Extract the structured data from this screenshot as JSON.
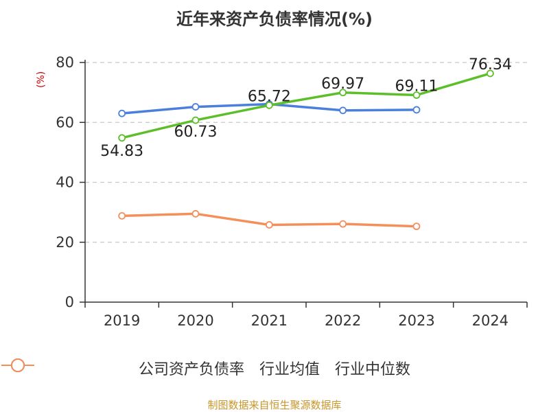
{
  "chart_data": {
    "type": "line",
    "title": "近年来资产负债率情况(%)",
    "ylabel": "(%)",
    "ylim": [
      0,
      80
    ],
    "yticks": [
      0,
      20,
      40,
      60,
      80
    ],
    "categories": [
      "2019",
      "2020",
      "2021",
      "2022",
      "2023",
      "2024"
    ],
    "grid": true,
    "legend_position": "bottom",
    "series": [
      {
        "name": "公司资产负债率",
        "color": "#5cbf2a",
        "values": [
          54.83,
          60.73,
          65.72,
          69.97,
          69.11,
          76.34
        ],
        "labels": [
          "54.83",
          "60.73",
          "65.72",
          "69.97",
          "69.11",
          "76.34"
        ]
      },
      {
        "name": "行业均值",
        "color": "#4a7fdc",
        "values": [
          63.0,
          65.2,
          66.1,
          64.0,
          64.2,
          null
        ]
      },
      {
        "name": "行业中位数",
        "color": "#f58f5a",
        "values": [
          28.8,
          29.5,
          25.8,
          26.1,
          25.3,
          null
        ]
      }
    ]
  },
  "source": "制图数据来自恒生聚源数据库"
}
